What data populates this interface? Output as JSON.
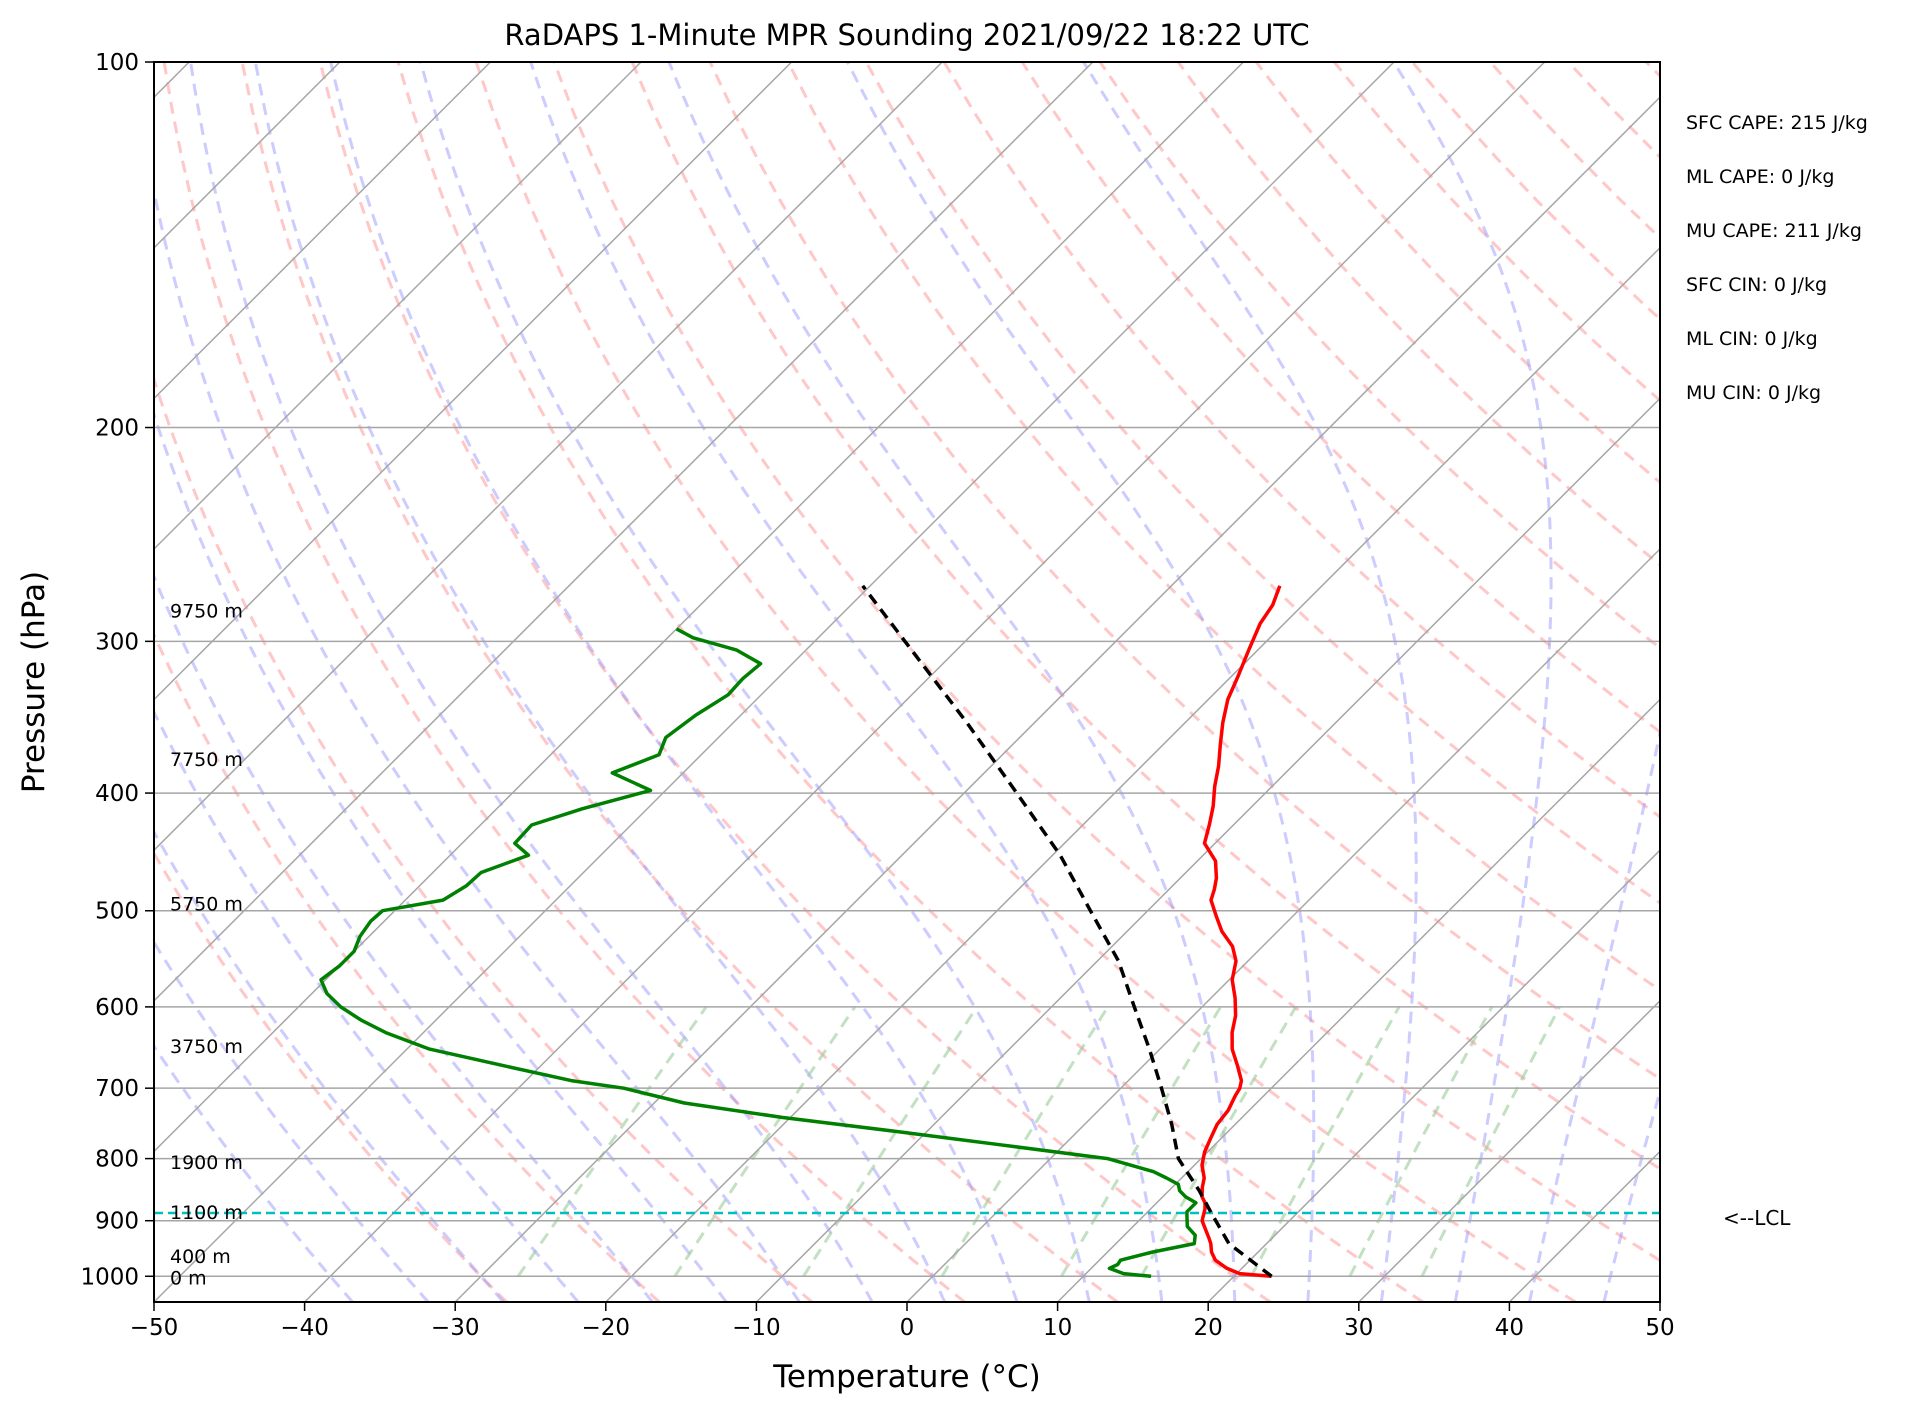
{
  "chart_data": {
    "type": "line",
    "chart_kind": "skew-T log-P diagram",
    "title": "RaDAPS 1-Minute MPR Sounding 2021/09/22 18:22 UTC",
    "xlabel": "Temperature (°C)",
    "ylabel": "Pressure (hPa)",
    "xlim": [
      -50,
      50
    ],
    "ylim": [
      1050,
      100
    ],
    "y_scale": "log",
    "skew_deg": 45,
    "grid": true,
    "x_ticks": [
      "−50",
      "−40",
      "−30",
      "−20",
      "−10",
      "0",
      "10",
      "20",
      "30",
      "40",
      "50"
    ],
    "y_ticks": [
      "100",
      "200",
      "300",
      "400",
      "500",
      "600",
      "700",
      "800",
      "900",
      "1000"
    ],
    "y_tick_values": [
      100,
      200,
      300,
      400,
      500,
      600,
      700,
      800,
      900,
      1000
    ],
    "height_labels": [
      {
        "text": "9750 m",
        "p": 283
      },
      {
        "text": "7750 m",
        "p": 375
      },
      {
        "text": "5750 m",
        "p": 493
      },
      {
        "text": "3750 m",
        "p": 646
      },
      {
        "text": "1900 m",
        "p": 805
      },
      {
        "text": "1100 m",
        "p": 885
      },
      {
        "text": "400 m",
        "p": 962
      },
      {
        "text": "0 m",
        "p": 1002
      }
    ],
    "lcl": {
      "p": 887,
      "label": "<--LCL"
    },
    "stats": [
      "SFC CAPE: 215 J/kg",
      "ML CAPE: 0 J/kg",
      "MU CAPE: 211 J/kg",
      "SFC CIN: 0 J/kg",
      "ML CIN: 0 J/kg",
      "MU CIN: 0 J/kg"
    ],
    "colors": {
      "temperature": "#ff0000",
      "dewpoint": "#008000",
      "parcel": "#000000",
      "lcl": "#00bfbf",
      "dry_adiabats": "#ff9999",
      "moist_adiabats": "#9999ff",
      "mixing_ratio": "#99cc99",
      "isotherms": "#a6a6a6"
    },
    "series": [
      {
        "id": "temperature",
        "points": [
          [
            1000,
            22.5
          ],
          [
            995,
            20.2
          ],
          [
            985,
            19.0
          ],
          [
            970,
            17.7
          ],
          [
            955,
            16.9
          ],
          [
            940,
            16.3
          ],
          [
            930,
            15.8
          ],
          [
            900,
            14.2
          ],
          [
            880,
            13.6
          ],
          [
            870,
            13.2
          ],
          [
            860,
            12.6
          ],
          [
            845,
            12.0
          ],
          [
            830,
            11.5
          ],
          [
            810,
            10.5
          ],
          [
            790,
            9.8
          ],
          [
            770,
            9.3
          ],
          [
            750,
            8.8
          ],
          [
            730,
            8.6
          ],
          [
            710,
            8.1
          ],
          [
            700,
            7.9
          ],
          [
            690,
            7.5
          ],
          [
            670,
            6.2
          ],
          [
            650,
            4.8
          ],
          [
            630,
            3.7
          ],
          [
            610,
            2.8
          ],
          [
            590,
            1.6
          ],
          [
            570,
            0.2
          ],
          [
            550,
            -0.8
          ],
          [
            535,
            -2.0
          ],
          [
            520,
            -3.7
          ],
          [
            505,
            -5.1
          ],
          [
            490,
            -6.5
          ],
          [
            480,
            -7.0
          ],
          [
            470,
            -7.6
          ],
          [
            455,
            -8.8
          ],
          [
            440,
            -10.7
          ],
          [
            425,
            -11.6
          ],
          [
            410,
            -12.6
          ],
          [
            395,
            -13.8
          ],
          [
            380,
            -14.9
          ],
          [
            365,
            -16.2
          ],
          [
            350,
            -17.5
          ],
          [
            335,
            -18.7
          ],
          [
            320,
            -19.6
          ],
          [
            305,
            -20.6
          ],
          [
            290,
            -21.6
          ],
          [
            280,
            -22.0
          ],
          [
            270,
            -22.8
          ]
        ]
      },
      {
        "id": "dewpoint",
        "points": [
          [
            1000,
            14.5
          ],
          [
            995,
            12.5
          ],
          [
            985,
            11.2
          ],
          [
            978,
            11.5
          ],
          [
            970,
            11.4
          ],
          [
            955,
            13.0
          ],
          [
            940,
            15.2
          ],
          [
            925,
            14.7
          ],
          [
            910,
            13.6
          ],
          [
            895,
            13.0
          ],
          [
            885,
            12.6
          ],
          [
            870,
            12.6
          ],
          [
            860,
            11.5
          ],
          [
            850,
            10.7
          ],
          [
            840,
            10.2
          ],
          [
            830,
            9.0
          ],
          [
            820,
            7.7
          ],
          [
            800,
            3.8
          ],
          [
            780,
            -4.0
          ],
          [
            760,
            -12.0
          ],
          [
            740,
            -20.5
          ],
          [
            720,
            -28.0
          ],
          [
            700,
            -33.0
          ],
          [
            690,
            -37.0
          ],
          [
            670,
            -42.7
          ],
          [
            650,
            -48.5
          ],
          [
            630,
            -52.5
          ],
          [
            615,
            -55.0
          ],
          [
            600,
            -57.2
          ],
          [
            585,
            -59.0
          ],
          [
            570,
            -60.3
          ],
          [
            555,
            -60.0
          ],
          [
            540,
            -60.0
          ],
          [
            525,
            -60.6
          ],
          [
            510,
            -60.9
          ],
          [
            500,
            -60.8
          ],
          [
            490,
            -57.5
          ],
          [
            477,
            -56.9
          ],
          [
            465,
            -56.8
          ],
          [
            450,
            -54.8
          ],
          [
            440,
            -56.5
          ],
          [
            425,
            -56.6
          ],
          [
            412,
            -54.3
          ],
          [
            398,
            -51.0
          ],
          [
            385,
            -54.7
          ],
          [
            372,
            -52.8
          ],
          [
            360,
            -53.5
          ],
          [
            345,
            -53.0
          ],
          [
            332,
            -52.2
          ],
          [
            322,
            -52.3
          ],
          [
            313,
            -52.1
          ],
          [
            305,
            -54.6
          ],
          [
            298,
            -58.3
          ],
          [
            293,
            -60.0
          ]
        ]
      },
      {
        "id": "parcel",
        "points": [
          [
            1000,
            22.5
          ],
          [
            940,
            17.5
          ],
          [
            887,
            14.3
          ],
          [
            850,
            12.0
          ],
          [
            800,
            8.5
          ],
          [
            750,
            5.8
          ],
          [
            700,
            2.7
          ],
          [
            650,
            -0.7
          ],
          [
            600,
            -4.5
          ],
          [
            550,
            -8.6
          ],
          [
            500,
            -13.8
          ],
          [
            450,
            -19.5
          ],
          [
            400,
            -26.5
          ],
          [
            350,
            -34.5
          ],
          [
            300,
            -44.0
          ],
          [
            270,
            -50.5
          ]
        ]
      }
    ]
  }
}
